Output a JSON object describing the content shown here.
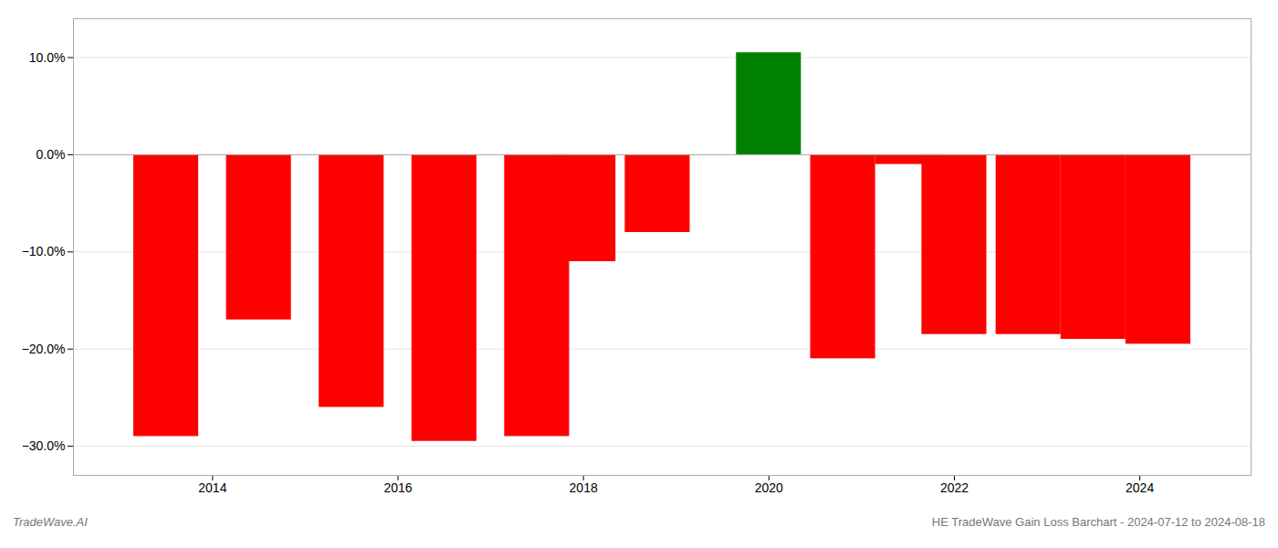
{
  "chart_data": {
    "type": "bar",
    "x": [
      2013.5,
      2014.5,
      2015.5,
      2016.5,
      2017.5,
      2018.0,
      2018.8,
      2020.0,
      2020.8,
      2021.5,
      2022.0,
      2022.8,
      2023.5,
      2024.2
    ],
    "values": [
      -29.0,
      -17.0,
      -26.0,
      -29.5,
      -29.0,
      -11.0,
      -8.0,
      10.5,
      -21.0,
      -1.0,
      -18.5,
      -18.5,
      -19.0,
      -19.5
    ],
    "colors": [
      "red",
      "red",
      "red",
      "red",
      "red",
      "red",
      "red",
      "green",
      "red",
      "red",
      "red",
      "red",
      "red",
      "red"
    ],
    "xlim": [
      2012.5,
      2025.2
    ],
    "xticks": [
      2014,
      2016,
      2018,
      2020,
      2022,
      2024
    ],
    "ylim": [
      -33,
      14
    ],
    "yticks": [
      {
        "value": 10.0,
        "label": "10.0%"
      },
      {
        "value": 0.0,
        "label": "0.0%"
      },
      {
        "value": -10.0,
        "label": "−10.0%"
      },
      {
        "value": -20.0,
        "label": "−20.0%"
      },
      {
        "value": -30.0,
        "label": "−30.0%"
      }
    ],
    "grid": true,
    "annotations": [
      "TradeWave.AI",
      "HE TradeWave Gain Loss Barchart - 2024-07-12 to 2024-08-18"
    ]
  }
}
